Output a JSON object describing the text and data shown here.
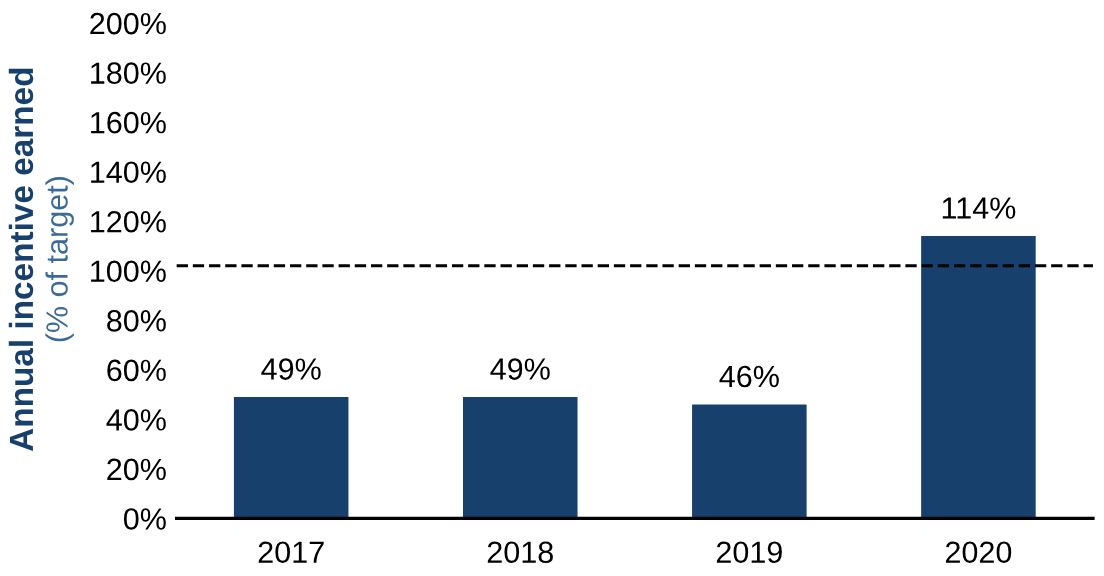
{
  "chart_data": {
    "type": "bar",
    "ylabel": "Annual incentive earned\n(% of target)",
    "categories": [
      "2017",
      "2018",
      "2019",
      "2020"
    ],
    "values": [
      49,
      49,
      46,
      114
    ],
    "value_labels": [
      "49%",
      "49%",
      "46%",
      "114%"
    ],
    "color": "#17406d",
    "ylim": [
      0,
      200
    ],
    "yticks": [
      {
        "value": 0,
        "label": "0%"
      },
      {
        "value": 20,
        "label": "20%"
      },
      {
        "value": 40,
        "label": "40%"
      },
      {
        "value": 60,
        "label": "60%"
      },
      {
        "value": 80,
        "label": "80%"
      },
      {
        "value": 100,
        "label": "100%"
      },
      {
        "value": 120,
        "label": "120%"
      },
      {
        "value": 140,
        "label": "140%"
      },
      {
        "value": 160,
        "label": "160%"
      },
      {
        "value": 180,
        "label": "180%"
      },
      {
        "value": 200,
        "label": "200%"
      }
    ],
    "ref_lines": [
      {
        "axis": "y",
        "value": 102,
        "color": "#000000",
        "line_style": "dashed"
      }
    ],
    "grid": false,
    "legend": false
  }
}
